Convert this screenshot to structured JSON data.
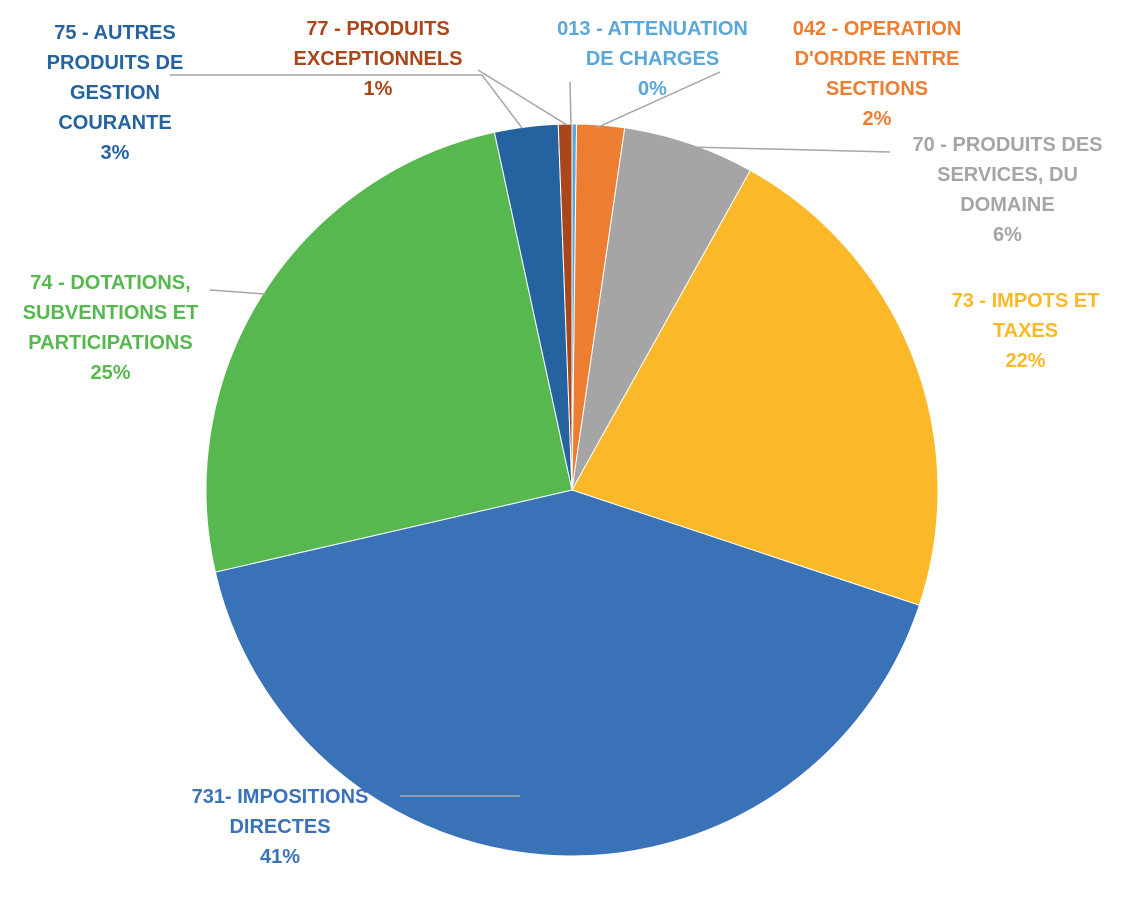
{
  "chart_data": {
    "type": "pie",
    "categories": [
      "013 - ATTENUATION DE CHARGES",
      "042 - OPERATION D'ORDRE ENTRE SECTIONS",
      "70 - PRODUITS DES SERVICES, DU DOMAINE",
      "73 - IMPOTS ET TAXES",
      "731- IMPOSITIONS DIRECTES",
      "74 - DOTATIONS, SUBVENTIONS ET PARTICIPATIONS",
      "75 - AUTRES PRODUITS DE GESTION COURANTE",
      "77 - PRODUITS EXCEPTIONNELS"
    ],
    "values": [
      0.2,
      2.1,
      5.8,
      22,
      41.3,
      25.2,
      2.8,
      0.6
    ],
    "value_labels": [
      "0%",
      "2%",
      "6%",
      "22%",
      "41%",
      "25%",
      "3%",
      "1%"
    ],
    "colors": [
      "#5ba7da",
      "#ed7d31",
      "#a5a5a5",
      "#fbb829",
      "#3a72b8",
      "#56b84f",
      "#2563a0",
      "#a9471b"
    ]
  }
}
